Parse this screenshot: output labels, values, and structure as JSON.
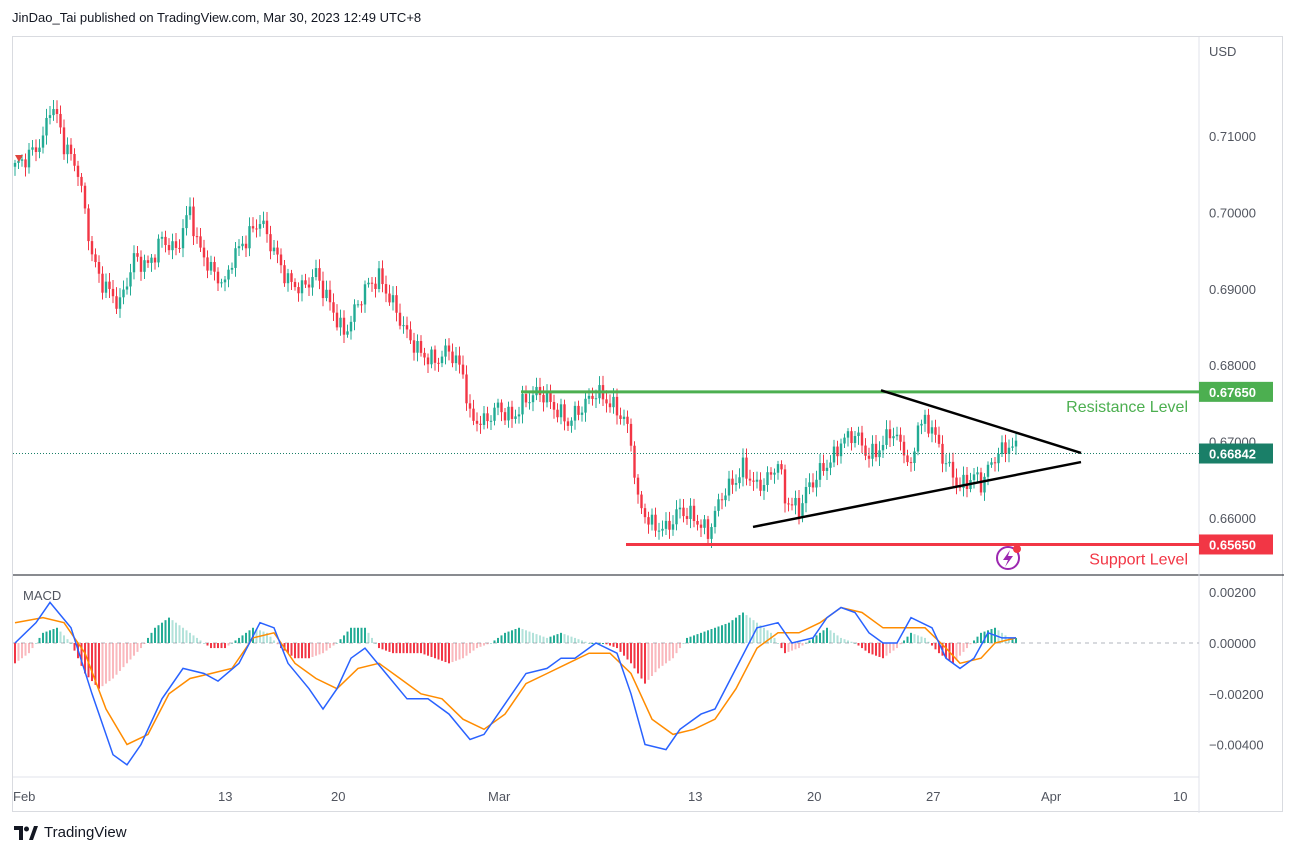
{
  "header": {
    "text": "JinDao_Tai published on TradingView.com, Mar 30, 2023 12:49 UTC+8"
  },
  "footer": {
    "brand": "TradingView"
  },
  "colors": {
    "up": "#22ab94",
    "down": "#f23645",
    "resistance": "#4caf50",
    "support": "#f23645",
    "macd": "#2962ff",
    "signal": "#ff8c00",
    "hist_up": "#22ab94",
    "hist_down": "#f23645",
    "price_badge": "#1a7f68"
  },
  "chart_data": {
    "type": "candlestick",
    "currency": "USD",
    "y_axis": {
      "ticks": [
        "0.71000",
        "0.70000",
        "0.69000",
        "0.68000",
        "0.67000",
        "0.66000"
      ],
      "tick_values": [
        0.71,
        0.7,
        0.69,
        0.68,
        0.67,
        0.66
      ],
      "range": [
        0.6525,
        0.723
      ]
    },
    "x_axis": {
      "labels": [
        "Feb",
        "13",
        "20",
        "Mar",
        "13",
        "20",
        "27",
        "Apr",
        "10"
      ]
    },
    "price_levels": [
      {
        "name": "Resistance Level",
        "value": "0.67650"
      },
      {
        "name": "current",
        "value": "0.66842"
      },
      {
        "name": "Support Level",
        "value": "0.65650"
      }
    ],
    "annotations": {
      "resistance_label": "Resistance Level",
      "support_label": "Support Level"
    },
    "close_path": [
      [
        0,
        0.706
      ],
      [
        4,
        0.7075
      ],
      [
        8,
        0.7095
      ],
      [
        10,
        0.714
      ],
      [
        12,
        0.7125
      ],
      [
        14,
        0.709
      ],
      [
        18,
        0.7055
      ],
      [
        22,
        0.6945
      ],
      [
        24,
        0.6915
      ],
      [
        28,
        0.689
      ],
      [
        30,
        0.688
      ],
      [
        34,
        0.694
      ],
      [
        38,
        0.693
      ],
      [
        42,
        0.6965
      ],
      [
        46,
        0.695
      ],
      [
        50,
        0.7005
      ],
      [
        52,
        0.696
      ],
      [
        56,
        0.6925
      ],
      [
        60,
        0.6905
      ],
      [
        62,
        0.694
      ],
      [
        66,
        0.6965
      ],
      [
        70,
        0.699
      ],
      [
        74,
        0.695
      ],
      [
        78,
        0.691
      ],
      [
        82,
        0.69
      ],
      [
        86,
        0.692
      ],
      [
        90,
        0.688
      ],
      [
        94,
        0.684
      ],
      [
        96,
        0.686
      ],
      [
        100,
        0.69
      ],
      [
        104,
        0.6915
      ],
      [
        108,
        0.688
      ],
      [
        112,
        0.684
      ],
      [
        116,
        0.6815
      ],
      [
        120,
        0.6805
      ],
      [
        124,
        0.682
      ],
      [
        128,
        0.679
      ],
      [
        130,
        0.673
      ],
      [
        134,
        0.6725
      ],
      [
        138,
        0.6745
      ],
      [
        142,
        0.673
      ],
      [
        146,
        0.6755
      ],
      [
        150,
        0.6765
      ],
      [
        154,
        0.6745
      ],
      [
        158,
        0.6725
      ],
      [
        162,
        0.6745
      ],
      [
        166,
        0.6765
      ],
      [
        170,
        0.675
      ],
      [
        174,
        0.673
      ],
      [
        176,
        0.67
      ],
      [
        178,
        0.662
      ],
      [
        182,
        0.659
      ],
      [
        186,
        0.6585
      ],
      [
        190,
        0.661
      ],
      [
        194,
        0.66
      ],
      [
        198,
        0.658
      ],
      [
        202,
        0.663
      ],
      [
        206,
        0.665
      ],
      [
        208,
        0.6665
      ],
      [
        212,
        0.664
      ],
      [
        216,
        0.6655
      ],
      [
        218,
        0.6675
      ],
      [
        220,
        0.6625
      ],
      [
        224,
        0.661
      ],
      [
        226,
        0.6635
      ],
      [
        230,
        0.666
      ],
      [
        234,
        0.668
      ],
      [
        236,
        0.67
      ],
      [
        240,
        0.671
      ],
      [
        244,
        0.668
      ],
      [
        248,
        0.6695
      ],
      [
        250,
        0.6715
      ],
      [
        254,
        0.669
      ],
      [
        256,
        0.666
      ],
      [
        258,
        0.6725
      ],
      [
        262,
        0.672
      ],
      [
        264,
        0.669
      ],
      [
        268,
        0.6655
      ],
      [
        270,
        0.664
      ],
      [
        274,
        0.6655
      ],
      [
        276,
        0.6645
      ],
      [
        280,
        0.668
      ],
      [
        284,
        0.6695
      ],
      [
        286,
        0.669
      ]
    ],
    "macd": {
      "y_axis": {
        "ticks": [
          "0.00200",
          "0.00000",
          "−0.00200",
          "−0.00400"
        ],
        "tick_values": [
          0.002,
          0.0,
          -0.002,
          -0.004
        ],
        "range": [
          -0.0052,
          0.0026
        ]
      },
      "label": "MACD",
      "macd_path": [
        [
          0,
          0.0
        ],
        [
          6,
          0.0008
        ],
        [
          10,
          0.0016
        ],
        [
          16,
          0.0006
        ],
        [
          22,
          -0.002
        ],
        [
          28,
          -0.0044
        ],
        [
          32,
          -0.0048
        ],
        [
          36,
          -0.004
        ],
        [
          42,
          -0.0022
        ],
        [
          48,
          -0.001
        ],
        [
          54,
          -0.0012
        ],
        [
          58,
          -0.0015
        ],
        [
          64,
          -0.0008
        ],
        [
          70,
          0.0008
        ],
        [
          74,
          0.0006
        ],
        [
          78,
          -0.0008
        ],
        [
          84,
          -0.0018
        ],
        [
          88,
          -0.0026
        ],
        [
          92,
          -0.0018
        ],
        [
          96,
          -0.0006
        ],
        [
          100,
          -0.0002
        ],
        [
          106,
          -0.0012
        ],
        [
          112,
          -0.0022
        ],
        [
          118,
          -0.0022
        ],
        [
          124,
          -0.0028
        ],
        [
          130,
          -0.0038
        ],
        [
          134,
          -0.0036
        ],
        [
          140,
          -0.0024
        ],
        [
          146,
          -0.0012
        ],
        [
          152,
          -0.001
        ],
        [
          156,
          -0.0006
        ],
        [
          160,
          -0.0006
        ],
        [
          166,
          0.0
        ],
        [
          172,
          -0.0004
        ],
        [
          176,
          -0.002
        ],
        [
          180,
          -0.004
        ],
        [
          186,
          -0.0042
        ],
        [
          190,
          -0.0034
        ],
        [
          196,
          -0.0028
        ],
        [
          200,
          -0.0026
        ],
        [
          206,
          -0.001
        ],
        [
          212,
          0.0006
        ],
        [
          218,
          0.0008
        ],
        [
          222,
          0.0
        ],
        [
          228,
          0.0002
        ],
        [
          232,
          0.001
        ],
        [
          236,
          0.0014
        ],
        [
          240,
          0.0012
        ],
        [
          244,
          0.0004
        ],
        [
          248,
          0.0
        ],
        [
          252,
          0.0
        ],
        [
          256,
          0.001
        ],
        [
          262,
          0.0006
        ],
        [
          266,
          -0.0006
        ],
        [
          270,
          -0.001
        ],
        [
          274,
          -0.0006
        ],
        [
          278,
          0.0004
        ],
        [
          282,
          0.0002
        ],
        [
          286,
          0.0002
        ]
      ],
      "signal_path": [
        [
          0,
          0.0008
        ],
        [
          8,
          0.001
        ],
        [
          14,
          0.0008
        ],
        [
          20,
          -0.0004
        ],
        [
          26,
          -0.0026
        ],
        [
          32,
          -0.004
        ],
        [
          38,
          -0.0036
        ],
        [
          44,
          -0.002
        ],
        [
          50,
          -0.0014
        ],
        [
          56,
          -0.0012
        ],
        [
          62,
          -0.001
        ],
        [
          68,
          0.0002
        ],
        [
          74,
          0.0004
        ],
        [
          80,
          -0.0008
        ],
        [
          86,
          -0.0014
        ],
        [
          92,
          -0.0018
        ],
        [
          98,
          -0.001
        ],
        [
          104,
          -0.0008
        ],
        [
          110,
          -0.0014
        ],
        [
          116,
          -0.002
        ],
        [
          122,
          -0.0022
        ],
        [
          128,
          -0.003
        ],
        [
          134,
          -0.0034
        ],
        [
          140,
          -0.0028
        ],
        [
          146,
          -0.0016
        ],
        [
          152,
          -0.0012
        ],
        [
          158,
          -0.0008
        ],
        [
          164,
          -0.0004
        ],
        [
          170,
          -0.0004
        ],
        [
          176,
          -0.0012
        ],
        [
          182,
          -0.003
        ],
        [
          188,
          -0.0036
        ],
        [
          194,
          -0.0034
        ],
        [
          200,
          -0.003
        ],
        [
          206,
          -0.0018
        ],
        [
          212,
          -0.0002
        ],
        [
          218,
          0.0004
        ],
        [
          224,
          0.0004
        ],
        [
          230,
          0.0008
        ],
        [
          236,
          0.0014
        ],
        [
          242,
          0.0012
        ],
        [
          248,
          0.0006
        ],
        [
          254,
          0.0006
        ],
        [
          260,
          0.0006
        ],
        [
          266,
          -0.0002
        ],
        [
          270,
          -0.0008
        ],
        [
          276,
          -0.0006
        ],
        [
          280,
          0.0
        ],
        [
          286,
          0.0002
        ]
      ],
      "histogram": [
        [
          0,
          -0.0008
        ],
        [
          4,
          -0.0004
        ],
        [
          8,
          0.0004
        ],
        [
          12,
          0.0006
        ],
        [
          16,
          0.0
        ],
        [
          20,
          -0.0012
        ],
        [
          24,
          -0.0018
        ],
        [
          28,
          -0.0014
        ],
        [
          32,
          -0.0008
        ],
        [
          36,
          -0.0002
        ],
        [
          40,
          0.0006
        ],
        [
          44,
          0.001
        ],
        [
          48,
          0.0006
        ],
        [
          52,
          0.0002
        ],
        [
          56,
          -0.0002
        ],
        [
          60,
          -0.0002
        ],
        [
          64,
          0.0002
        ],
        [
          68,
          0.0006
        ],
        [
          72,
          0.0004
        ],
        [
          76,
          -0.0002
        ],
        [
          80,
          -0.0006
        ],
        [
          84,
          -0.0006
        ],
        [
          88,
          -0.0004
        ],
        [
          92,
          0.0
        ],
        [
          96,
          0.0006
        ],
        [
          100,
          0.0006
        ],
        [
          104,
          -0.0002
        ],
        [
          108,
          -0.0004
        ],
        [
          112,
          -0.0004
        ],
        [
          116,
          -0.0004
        ],
        [
          120,
          -0.0006
        ],
        [
          124,
          -0.0008
        ],
        [
          128,
          -0.0006
        ],
        [
          132,
          -0.0002
        ],
        [
          136,
          0.0
        ],
        [
          140,
          0.0004
        ],
        [
          144,
          0.0006
        ],
        [
          148,
          0.0004
        ],
        [
          152,
          0.0002
        ],
        [
          156,
          0.0004
        ],
        [
          160,
          0.0002
        ],
        [
          164,
          0.0
        ],
        [
          168,
          0.0
        ],
        [
          172,
          -0.0002
        ],
        [
          176,
          -0.0008
        ],
        [
          180,
          -0.0016
        ],
        [
          184,
          -0.001
        ],
        [
          188,
          -0.0006
        ],
        [
          192,
          0.0002
        ],
        [
          196,
          0.0004
        ],
        [
          200,
          0.0006
        ],
        [
          204,
          0.0008
        ],
        [
          208,
          0.0012
        ],
        [
          212,
          0.0008
        ],
        [
          216,
          0.0004
        ],
        [
          220,
          -0.0004
        ],
        [
          224,
          -0.0002
        ],
        [
          228,
          0.0002
        ],
        [
          232,
          0.0006
        ],
        [
          236,
          0.0002
        ],
        [
          240,
          0.0
        ],
        [
          244,
          -0.0004
        ],
        [
          248,
          -0.0006
        ],
        [
          252,
          -0.0002
        ],
        [
          256,
          0.0004
        ],
        [
          260,
          0.0002
        ],
        [
          264,
          -0.0004
        ],
        [
          268,
          -0.0008
        ],
        [
          272,
          -0.0002
        ],
        [
          276,
          0.0004
        ],
        [
          280,
          0.0006
        ],
        [
          284,
          0.0002
        ]
      ]
    }
  }
}
